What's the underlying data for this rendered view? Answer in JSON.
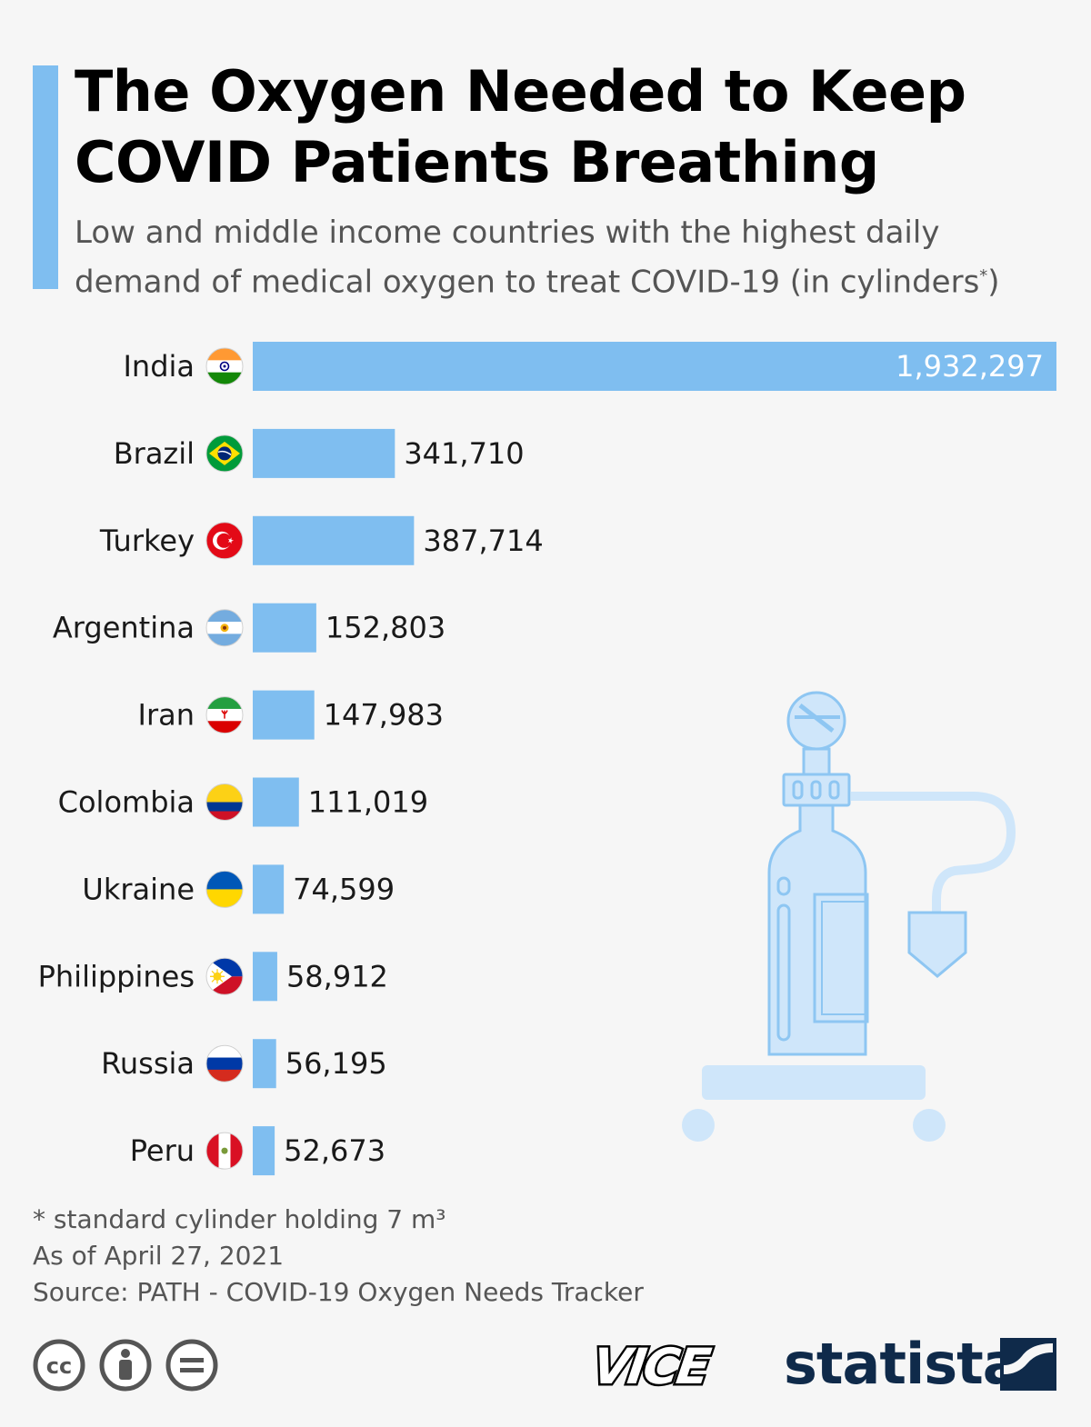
{
  "header": {
    "title_line1": "The Oxygen Needed to Keep",
    "title_line2": "COVID Patients Breathing",
    "subtitle_line1": "Low and middle income countries with the highest daily",
    "subtitle_line2_pre": "demand of medical oxygen to treat COVID-19 (in cylinders",
    "subtitle_sup": "*",
    "subtitle_line2_post": ")"
  },
  "colors": {
    "accent": "#7fbef0",
    "bar": "#7fbef0",
    "illustration": "#cfe6fa",
    "illustration_stroke": "#8ec6f2",
    "brand": "#0f2a4a"
  },
  "chart_data": {
    "type": "bar",
    "orientation": "horizontal",
    "categories": [
      "India",
      "Brazil",
      "Turkey",
      "Argentina",
      "Iran",
      "Colombia",
      "Ukraine",
      "Philippines",
      "Russia",
      "Peru"
    ],
    "values": [
      1932297,
      341710,
      387714,
      152803,
      147983,
      111019,
      74599,
      58912,
      56195,
      52673
    ],
    "value_labels": [
      "1,932,297",
      "341,710",
      "387,714",
      "152,803",
      "147,983",
      "111,019",
      "74,599",
      "58,912",
      "56,195",
      "52,673"
    ],
    "flag_icons": [
      "india-flag-icon",
      "brazil-flag-icon",
      "turkey-flag-icon",
      "argentina-flag-icon",
      "iran-flag-icon",
      "colombia-flag-icon",
      "ukraine-flag-icon",
      "philippines-flag-icon",
      "russia-flag-icon",
      "peru-flag-icon"
    ],
    "xlim": [
      0,
      1932297
    ],
    "grid": false,
    "legend": "none"
  },
  "footer": {
    "note": "* standard cylinder holding 7 m³",
    "date": "As of April 27, 2021",
    "source": "Source: PATH - COVID-19 Oxygen Needs Tracker",
    "brand": "statista",
    "partner_logo": "VICE"
  },
  "icons": [
    "cc-license-icon",
    "by-attribution-icon",
    "no-derivatives-icon",
    "oxygen-cylinder-illustration",
    "statista-mark-icon"
  ]
}
